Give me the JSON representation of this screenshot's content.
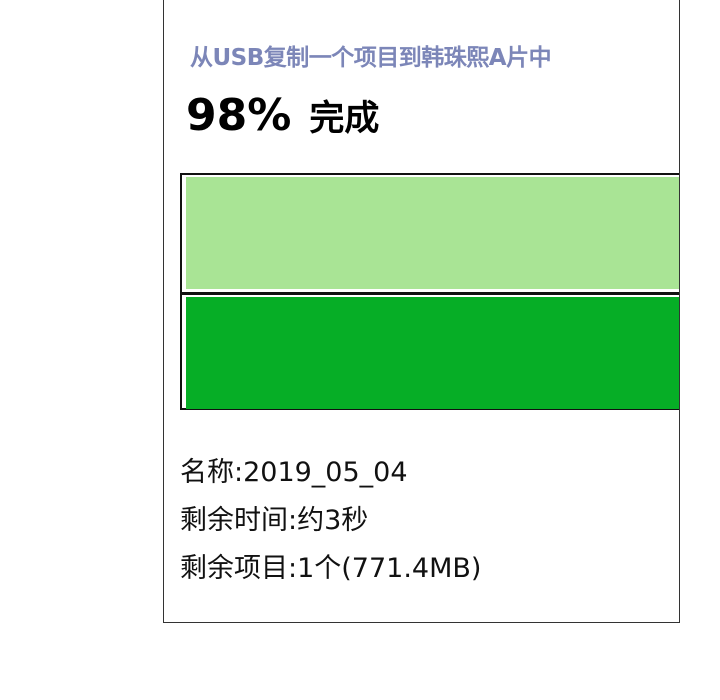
{
  "dialog": {
    "title": "从USB复制一个项目到韩珠熙A片中",
    "progress_percent_label": "98%",
    "progress_status": "完成",
    "progress": 98,
    "colors": {
      "title": "#7c86b8",
      "bar_light": "#a9e495",
      "bar_dark": "#06ae26"
    },
    "details": {
      "name": "名称:2019_05_04",
      "time_remaining": "剩余时间:约3秒",
      "items_remaining": "剩余项目:1个(771.4MB)"
    }
  }
}
